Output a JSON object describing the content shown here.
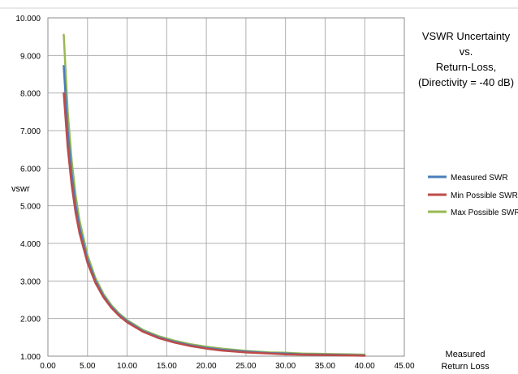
{
  "chart_data": {
    "type": "line",
    "title_lines": [
      "VSWR Uncertainty",
      "vs.",
      "Return-Loss,",
      "(Directivity = -40 dB)"
    ],
    "xlabel_lines": [
      "Measured",
      "Return Loss"
    ],
    "ylabel": "vswr",
    "xlim": [
      0,
      45
    ],
    "ylim": [
      1,
      10
    ],
    "x_ticks": [
      0,
      5,
      10,
      15,
      20,
      25,
      30,
      35,
      40,
      45
    ],
    "x_tick_labels": [
      "0.00",
      "5.00",
      "10.00",
      "15.00",
      "20.00",
      "25.00",
      "30.00",
      "35.00",
      "40.00",
      "45.00"
    ],
    "y_ticks": [
      1,
      2,
      3,
      4,
      5,
      6,
      7,
      8,
      9,
      10
    ],
    "y_tick_labels": [
      "1.000",
      "2.000",
      "3.000",
      "4.000",
      "5.000",
      "6.000",
      "7.000",
      "8.000",
      "9.000",
      "10.000"
    ],
    "grid": true,
    "legend_position": "right",
    "x": [
      2,
      2.5,
      3,
      3.5,
      4,
      5,
      6,
      7,
      8,
      9,
      10,
      12,
      14,
      16,
      18,
      20,
      22,
      25,
      28,
      30,
      32,
      35,
      38,
      40
    ],
    "series": [
      {
        "name": "Measured SWR",
        "color": "#4a7ebb",
        "values": [
          8.72,
          7.0,
          5.85,
          5.03,
          4.42,
          3.57,
          3.01,
          2.61,
          2.32,
          2.1,
          1.93,
          1.67,
          1.5,
          1.38,
          1.29,
          1.22,
          1.17,
          1.12,
          1.08,
          1.07,
          1.05,
          1.04,
          1.03,
          1.02
        ]
      },
      {
        "name": "Min Possible SWR",
        "color": "#be4b48",
        "values": [
          8.0,
          6.55,
          5.55,
          4.82,
          4.27,
          3.48,
          2.95,
          2.57,
          2.29,
          2.07,
          1.9,
          1.65,
          1.48,
          1.36,
          1.27,
          1.2,
          1.15,
          1.1,
          1.07,
          1.05,
          1.04,
          1.03,
          1.02,
          1.01
        ]
      },
      {
        "name": "Max Possible SWR",
        "color": "#98b954",
        "values": [
          9.55,
          7.5,
          6.2,
          5.28,
          4.6,
          3.68,
          3.08,
          2.66,
          2.36,
          2.13,
          1.96,
          1.7,
          1.53,
          1.41,
          1.32,
          1.25,
          1.2,
          1.14,
          1.1,
          1.09,
          1.07,
          1.06,
          1.05,
          1.04
        ]
      }
    ]
  }
}
